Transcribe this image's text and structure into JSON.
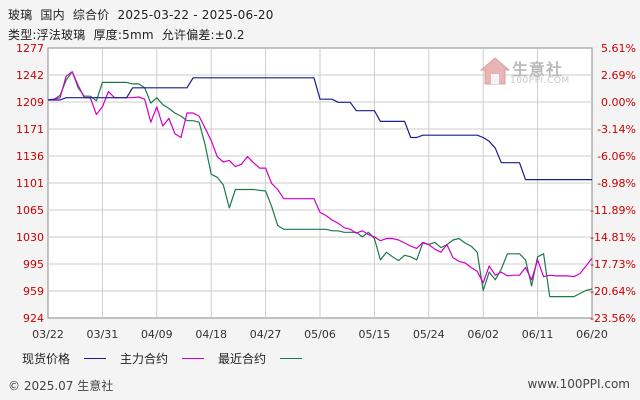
{
  "header": {
    "line1": "玻璃  国内  综合价  2025-03-22 - 2025-06-20",
    "line2": "类型:浮法玻璃  厚度:5mm  允许偏差:±0.2"
  },
  "watermark": {
    "name": "生意社",
    "url": "100PPI.COM"
  },
  "footer": {
    "copyright": "© 2025.07 生意社",
    "website": "www.100PPI.com"
  },
  "chart_data": {
    "type": "line",
    "x_ticks": [
      "03/22",
      "03/31",
      "04/09",
      "04/18",
      "04/27",
      "05/06",
      "05/15",
      "05/24",
      "06/02",
      "06/11",
      "06/20"
    ],
    "y_ticks_left": [
      "1277",
      "1242",
      "1209",
      "1171",
      "1136",
      "1101",
      "1065",
      "1030",
      "995",
      "959",
      "924"
    ],
    "y_ticks_right": [
      "5.61%",
      "2.69%",
      "0.00%",
      "-3.14%",
      "-6.06%",
      "-8.98%",
      "-11.89%",
      "-14.81%",
      "-17.73%",
      "-20.64%",
      "-23.56%"
    ],
    "ylim": [
      924,
      1277
    ],
    "xlim": [
      "2025-03-22",
      "2025-06-20"
    ],
    "grid": true,
    "legend_position": "bottom",
    "series": [
      {
        "name": "现货价格",
        "color": "#1c1c8c",
        "points": [
          [
            "2025-03-22",
            1209
          ],
          [
            "2025-03-24",
            1209
          ],
          [
            "2025-03-25",
            1212
          ],
          [
            "2025-03-29",
            1212
          ],
          [
            "2025-04-04",
            1212
          ],
          [
            "2025-04-05",
            1225
          ],
          [
            "2025-04-14",
            1225
          ],
          [
            "2025-04-15",
            1238
          ],
          [
            "2025-05-05",
            1238
          ],
          [
            "2025-05-06",
            1210
          ],
          [
            "2025-05-08",
            1210
          ],
          [
            "2025-05-09",
            1206
          ],
          [
            "2025-05-11",
            1206
          ],
          [
            "2025-05-12",
            1195
          ],
          [
            "2025-05-15",
            1195
          ],
          [
            "2025-05-16",
            1181
          ],
          [
            "2025-05-20",
            1181
          ],
          [
            "2025-05-21",
            1160
          ],
          [
            "2025-05-22",
            1160
          ],
          [
            "2025-05-23",
            1163
          ],
          [
            "2025-06-01",
            1163
          ],
          [
            "2025-06-02",
            1160
          ],
          [
            "2025-06-03",
            1155
          ],
          [
            "2025-06-04",
            1146
          ],
          [
            "2025-06-05",
            1127
          ],
          [
            "2025-06-08",
            1127
          ],
          [
            "2025-06-09",
            1105
          ],
          [
            "2025-06-20",
            1105
          ]
        ]
      },
      {
        "name": "主力合约",
        "color": "#d000c8",
        "points": [
          [
            "2025-03-22",
            1209
          ],
          [
            "2025-03-23",
            1210
          ],
          [
            "2025-03-24",
            1212
          ],
          [
            "2025-03-25",
            1240
          ],
          [
            "2025-03-26",
            1246
          ],
          [
            "2025-03-27",
            1228
          ],
          [
            "2025-03-28",
            1212
          ],
          [
            "2025-03-29",
            1212
          ],
          [
            "2025-03-30",
            1190
          ],
          [
            "2025-03-31",
            1200
          ],
          [
            "2025-04-01",
            1220
          ],
          [
            "2025-04-02",
            1212
          ],
          [
            "2025-04-03",
            1212
          ],
          [
            "2025-04-04",
            1212
          ],
          [
            "2025-04-05",
            1212
          ],
          [
            "2025-04-06",
            1213
          ],
          [
            "2025-04-07",
            1210
          ],
          [
            "2025-04-08",
            1180
          ],
          [
            "2025-04-09",
            1200
          ],
          [
            "2025-04-10",
            1175
          ],
          [
            "2025-04-11",
            1185
          ],
          [
            "2025-04-12",
            1165
          ],
          [
            "2025-04-13",
            1160
          ],
          [
            "2025-04-14",
            1192
          ],
          [
            "2025-04-15",
            1192
          ],
          [
            "2025-04-16",
            1188
          ],
          [
            "2025-04-17",
            1172
          ],
          [
            "2025-04-18",
            1156
          ],
          [
            "2025-04-19",
            1135
          ],
          [
            "2025-04-20",
            1128
          ],
          [
            "2025-04-21",
            1130
          ],
          [
            "2025-04-22",
            1122
          ],
          [
            "2025-04-23",
            1125
          ],
          [
            "2025-04-24",
            1135
          ],
          [
            "2025-04-25",
            1127
          ],
          [
            "2025-04-26",
            1120
          ],
          [
            "2025-04-27",
            1120
          ],
          [
            "2025-04-28",
            1100
          ],
          [
            "2025-04-29",
            1092
          ],
          [
            "2025-04-30",
            1080
          ],
          [
            "2025-05-01",
            1080
          ],
          [
            "2025-05-02",
            1080
          ],
          [
            "2025-05-03",
            1080
          ],
          [
            "2025-05-04",
            1080
          ],
          [
            "2025-05-05",
            1080
          ],
          [
            "2025-05-06",
            1062
          ],
          [
            "2025-05-07",
            1058
          ],
          [
            "2025-05-08",
            1052
          ],
          [
            "2025-05-09",
            1048
          ],
          [
            "2025-05-10",
            1042
          ],
          [
            "2025-05-11",
            1040
          ],
          [
            "2025-05-12",
            1035
          ],
          [
            "2025-05-13",
            1038
          ],
          [
            "2025-05-14",
            1033
          ],
          [
            "2025-05-15",
            1030
          ],
          [
            "2025-05-16",
            1025
          ],
          [
            "2025-05-17",
            1028
          ],
          [
            "2025-05-18",
            1028
          ],
          [
            "2025-05-19",
            1026
          ],
          [
            "2025-05-20",
            1022
          ],
          [
            "2025-05-21",
            1018
          ],
          [
            "2025-05-22",
            1015
          ],
          [
            "2025-05-23",
            1023
          ],
          [
            "2025-05-24",
            1020
          ],
          [
            "2025-05-25",
            1014
          ],
          [
            "2025-05-26",
            1010
          ],
          [
            "2025-05-27",
            1020
          ],
          [
            "2025-05-28",
            1003
          ],
          [
            "2025-05-29",
            998
          ],
          [
            "2025-05-30",
            996
          ],
          [
            "2025-05-31",
            990
          ],
          [
            "2025-06-01",
            985
          ],
          [
            "2025-06-02",
            970
          ],
          [
            "2025-06-03",
            992
          ],
          [
            "2025-06-04",
            980
          ],
          [
            "2025-06-05",
            984
          ],
          [
            "2025-06-06",
            979
          ],
          [
            "2025-06-07",
            980
          ],
          [
            "2025-06-08",
            980
          ],
          [
            "2025-06-09",
            990
          ],
          [
            "2025-06-10",
            974
          ],
          [
            "2025-06-11",
            1000
          ],
          [
            "2025-06-12",
            978
          ],
          [
            "2025-06-13",
            980
          ],
          [
            "2025-06-14",
            979
          ],
          [
            "2025-06-15",
            979
          ],
          [
            "2025-06-16",
            979
          ],
          [
            "2025-06-17",
            978
          ],
          [
            "2025-06-18",
            982
          ],
          [
            "2025-06-19",
            992
          ],
          [
            "2025-06-20",
            1002
          ]
        ]
      },
      {
        "name": "最近合约",
        "color": "#1a7a4a",
        "points": [
          [
            "2025-03-22",
            1209
          ],
          [
            "2025-03-23",
            1210
          ],
          [
            "2025-03-24",
            1215
          ],
          [
            "2025-03-25",
            1235
          ],
          [
            "2025-03-26",
            1246
          ],
          [
            "2025-03-27",
            1225
          ],
          [
            "2025-03-28",
            1214
          ],
          [
            "2025-03-29",
            1214
          ],
          [
            "2025-03-30",
            1208
          ],
          [
            "2025-03-31",
            1232
          ],
          [
            "2025-04-01",
            1232
          ],
          [
            "2025-04-02",
            1232
          ],
          [
            "2025-04-03",
            1232
          ],
          [
            "2025-04-04",
            1232
          ],
          [
            "2025-04-05",
            1230
          ],
          [
            "2025-04-06",
            1230
          ],
          [
            "2025-04-07",
            1225
          ],
          [
            "2025-04-08",
            1205
          ],
          [
            "2025-04-09",
            1212
          ],
          [
            "2025-04-10",
            1203
          ],
          [
            "2025-04-11",
            1198
          ],
          [
            "2025-04-12",
            1192
          ],
          [
            "2025-04-13",
            1188
          ],
          [
            "2025-04-14",
            1182
          ],
          [
            "2025-04-15",
            1182
          ],
          [
            "2025-04-16",
            1180
          ],
          [
            "2025-04-17",
            1150
          ],
          [
            "2025-04-18",
            1112
          ],
          [
            "2025-04-19",
            1108
          ],
          [
            "2025-04-20",
            1098
          ],
          [
            "2025-04-21",
            1068
          ],
          [
            "2025-04-22",
            1092
          ],
          [
            "2025-04-23",
            1092
          ],
          [
            "2025-04-24",
            1092
          ],
          [
            "2025-04-25",
            1092
          ],
          [
            "2025-04-26",
            1091
          ],
          [
            "2025-04-27",
            1090
          ],
          [
            "2025-04-28",
            1070
          ],
          [
            "2025-04-29",
            1045
          ],
          [
            "2025-04-30",
            1040
          ],
          [
            "2025-05-01",
            1040
          ],
          [
            "2025-05-02",
            1040
          ],
          [
            "2025-05-03",
            1040
          ],
          [
            "2025-05-04",
            1040
          ],
          [
            "2025-05-05",
            1040
          ],
          [
            "2025-05-06",
            1040
          ],
          [
            "2025-05-07",
            1040
          ],
          [
            "2025-05-08",
            1038
          ],
          [
            "2025-05-09",
            1038
          ],
          [
            "2025-05-10",
            1036
          ],
          [
            "2025-05-11",
            1036
          ],
          [
            "2025-05-12",
            1036
          ],
          [
            "2025-05-13",
            1030
          ],
          [
            "2025-05-14",
            1036
          ],
          [
            "2025-05-15",
            1028
          ],
          [
            "2025-05-16",
            1000
          ],
          [
            "2025-05-17",
            1010
          ],
          [
            "2025-05-18",
            1004
          ],
          [
            "2025-05-19",
            999
          ],
          [
            "2025-05-20",
            1006
          ],
          [
            "2025-05-21",
            1004
          ],
          [
            "2025-05-22",
            1000
          ],
          [
            "2025-05-23",
            1022
          ],
          [
            "2025-05-24",
            1020
          ],
          [
            "2025-05-25",
            1023
          ],
          [
            "2025-05-26",
            1016
          ],
          [
            "2025-05-27",
            1020
          ],
          [
            "2025-05-28",
            1026
          ],
          [
            "2025-05-29",
            1028
          ],
          [
            "2025-05-30",
            1022
          ],
          [
            "2025-05-31",
            1018
          ],
          [
            "2025-06-01",
            1010
          ],
          [
            "2025-06-02",
            960
          ],
          [
            "2025-06-03",
            984
          ],
          [
            "2025-06-04",
            974
          ],
          [
            "2025-06-05",
            988
          ],
          [
            "2025-06-06",
            1008
          ],
          [
            "2025-06-07",
            1008
          ],
          [
            "2025-06-08",
            1008
          ],
          [
            "2025-06-09",
            1000
          ],
          [
            "2025-06-10",
            966
          ],
          [
            "2025-06-11",
            1004
          ],
          [
            "2025-06-12",
            1008
          ],
          [
            "2025-06-13",
            952
          ],
          [
            "2025-06-14",
            952
          ],
          [
            "2025-06-15",
            952
          ],
          [
            "2025-06-16",
            952
          ],
          [
            "2025-06-17",
            952
          ],
          [
            "2025-06-18",
            956
          ],
          [
            "2025-06-19",
            960
          ],
          [
            "2025-06-20",
            962
          ]
        ]
      }
    ]
  }
}
